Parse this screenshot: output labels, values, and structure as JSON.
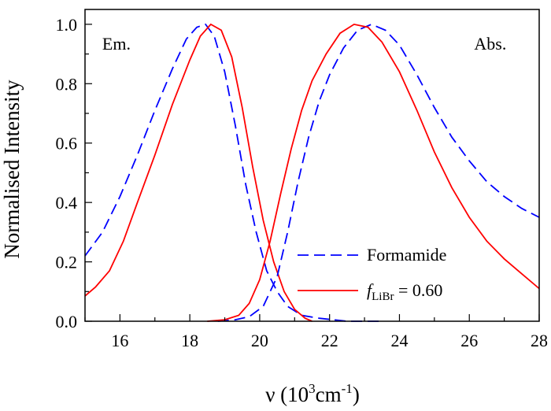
{
  "chart_data": {
    "type": "line",
    "xlabel": "ν (10",
    "xlabel_sup": "3",
    "xlabel_mid": "cm",
    "xlabel_sup2": "-1",
    "xlabel_end": ")",
    "ylabel": "Normalised Intensity",
    "xlim": [
      15,
      28
    ],
    "ylim": [
      0,
      1.05
    ],
    "xticks": [
      16,
      18,
      20,
      22,
      24,
      26,
      28
    ],
    "xtick_labels": [
      "16",
      "18",
      "20",
      "22",
      "24",
      "26",
      "28"
    ],
    "yticks": [
      0,
      0.2,
      0.4,
      0.6,
      0.8,
      1.0
    ],
    "ytick_labels": [
      "0.0",
      "0.2",
      "0.4",
      "0.6",
      "0.8",
      "1.0"
    ],
    "annotations": [
      {
        "text": "Em.",
        "x": 15.9,
        "y": 0.915
      },
      {
        "text": "Abs.",
        "x": 26.6,
        "y": 0.915
      }
    ],
    "legend": {
      "placement": "lower-right",
      "entries": [
        {
          "label": "Formamide",
          "style": "dashed",
          "color": "#0000ff"
        },
        {
          "label_italic": "f",
          "label_sub": "LiBr",
          "label_rest": " = 0.60",
          "style": "solid",
          "color": "#ff0000"
        }
      ]
    },
    "series": [
      {
        "legend_index": 0,
        "band": "emission",
        "color": "#0000ff",
        "style": "dashed",
        "points": [
          [
            15.0,
            0.22
          ],
          [
            15.5,
            0.3
          ],
          [
            16.0,
            0.42
          ],
          [
            16.5,
            0.56
          ],
          [
            17.0,
            0.71
          ],
          [
            17.5,
            0.85
          ],
          [
            17.9,
            0.95
          ],
          [
            18.2,
            0.99
          ],
          [
            18.45,
            1.0
          ],
          [
            18.7,
            0.96
          ],
          [
            19.0,
            0.84
          ],
          [
            19.3,
            0.66
          ],
          [
            19.6,
            0.46
          ],
          [
            19.9,
            0.3
          ],
          [
            20.2,
            0.17
          ],
          [
            20.5,
            0.1
          ],
          [
            20.8,
            0.05
          ],
          [
            21.2,
            0.02
          ],
          [
            21.7,
            0.01
          ],
          [
            22.5,
            0.0
          ],
          [
            23.5,
            0.0
          ]
        ]
      },
      {
        "legend_index": 1,
        "band": "emission",
        "color": "#ff0000",
        "style": "solid",
        "points": [
          [
            15.0,
            0.085
          ],
          [
            15.3,
            0.115
          ],
          [
            15.7,
            0.17
          ],
          [
            16.1,
            0.27
          ],
          [
            16.5,
            0.4
          ],
          [
            17.0,
            0.56
          ],
          [
            17.5,
            0.73
          ],
          [
            18.0,
            0.88
          ],
          [
            18.3,
            0.96
          ],
          [
            18.6,
            1.0
          ],
          [
            18.9,
            0.98
          ],
          [
            19.2,
            0.89
          ],
          [
            19.5,
            0.72
          ],
          [
            19.8,
            0.52
          ],
          [
            20.1,
            0.34
          ],
          [
            20.4,
            0.2
          ],
          [
            20.7,
            0.1
          ],
          [
            21.0,
            0.04
          ],
          [
            21.3,
            0.01
          ],
          [
            21.5,
            0.0
          ]
        ]
      },
      {
        "legend_index": 0,
        "band": "absorption",
        "color": "#0000ff",
        "style": "dashed",
        "points": [
          [
            18.8,
            0.0
          ],
          [
            19.3,
            0.005
          ],
          [
            19.7,
            0.015
          ],
          [
            20.1,
            0.05
          ],
          [
            20.5,
            0.15
          ],
          [
            20.8,
            0.3
          ],
          [
            21.1,
            0.47
          ],
          [
            21.4,
            0.62
          ],
          [
            21.7,
            0.74
          ],
          [
            22.0,
            0.83
          ],
          [
            22.4,
            0.92
          ],
          [
            22.8,
            0.98
          ],
          [
            23.2,
            1.0
          ],
          [
            23.6,
            0.98
          ],
          [
            24.0,
            0.93
          ],
          [
            24.5,
            0.83
          ],
          [
            25.0,
            0.72
          ],
          [
            25.5,
            0.62
          ],
          [
            26.0,
            0.54
          ],
          [
            26.5,
            0.47
          ],
          [
            27.0,
            0.42
          ],
          [
            27.5,
            0.38
          ],
          [
            28.0,
            0.35
          ]
        ]
      },
      {
        "legend_index": 1,
        "band": "absorption",
        "color": "#ff0000",
        "style": "solid",
        "points": [
          [
            18.5,
            0.0
          ],
          [
            19.0,
            0.005
          ],
          [
            19.4,
            0.02
          ],
          [
            19.7,
            0.06
          ],
          [
            20.0,
            0.14
          ],
          [
            20.3,
            0.27
          ],
          [
            20.6,
            0.43
          ],
          [
            20.9,
            0.58
          ],
          [
            21.2,
            0.71
          ],
          [
            21.5,
            0.81
          ],
          [
            21.9,
            0.9
          ],
          [
            22.3,
            0.97
          ],
          [
            22.7,
            1.0
          ],
          [
            23.1,
            0.99
          ],
          [
            23.5,
            0.94
          ],
          [
            24.0,
            0.84
          ],
          [
            24.5,
            0.71
          ],
          [
            25.0,
            0.57
          ],
          [
            25.5,
            0.45
          ],
          [
            26.0,
            0.35
          ],
          [
            26.5,
            0.27
          ],
          [
            27.0,
            0.21
          ],
          [
            27.5,
            0.16
          ],
          [
            28.0,
            0.11
          ]
        ]
      }
    ]
  }
}
